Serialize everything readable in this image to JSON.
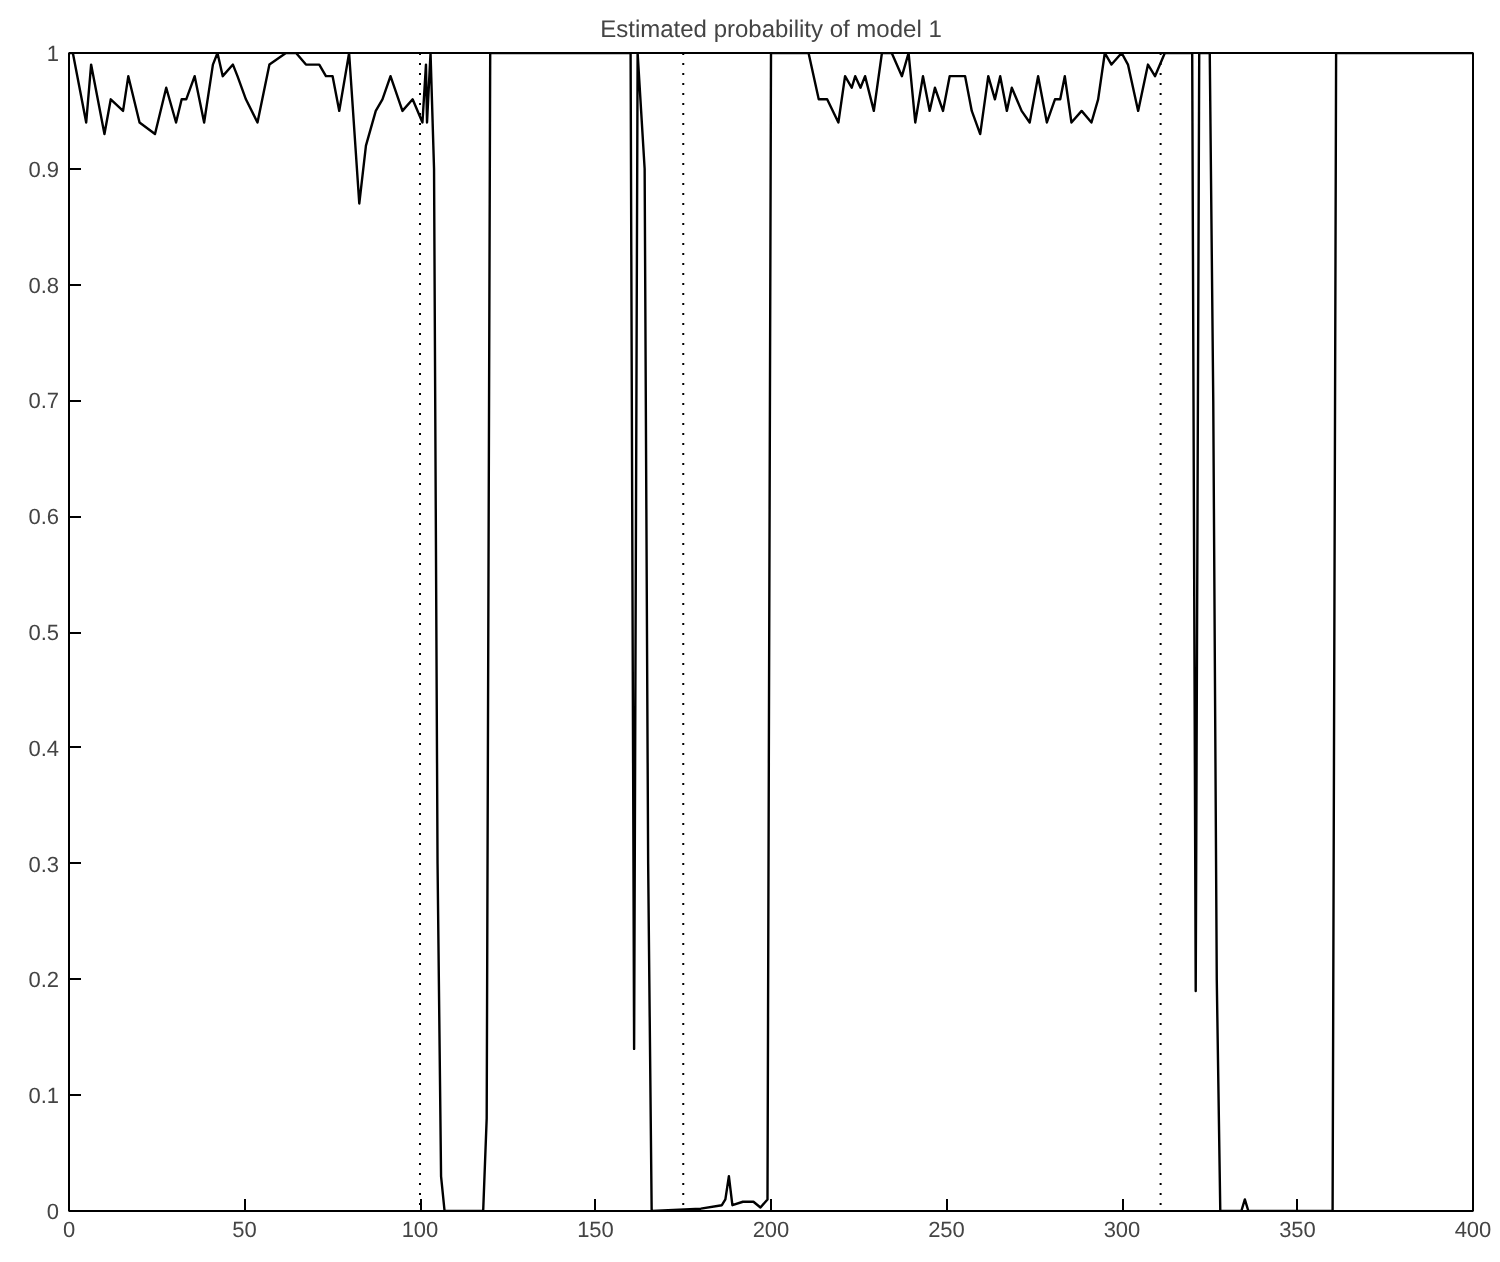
{
  "chart_data": {
    "type": "line",
    "title": "Estimated probability of model 1",
    "x": [
      0,
      1.1,
      4.9,
      6.3,
      10.1,
      11.9,
      15.4,
      16.9,
      20.1,
      24.5,
      27.7,
      30.5,
      32.1,
      33.4,
      35.8,
      38.5,
      41,
      42.3,
      43.8,
      46.7,
      48,
      50.4,
      53.7,
      57.1,
      61.8,
      64.7,
      67.5,
      71.3,
      73.2,
      75.1,
      77,
      79.8,
      82.7,
      84.6,
      87.4,
      89.3,
      91.6,
      95,
      97.9,
      100.7,
      101.7,
      102,
      103,
      104,
      105,
      106,
      107,
      118,
      119,
      120,
      160,
      161,
      162,
      163,
      164,
      165,
      166,
      180,
      186,
      187,
      188,
      189,
      192,
      195,
      197,
      199,
      200,
      205,
      208,
      210.7,
      213.6,
      216,
      219.2,
      221.1,
      223,
      224,
      225.5,
      226.8,
      229.3,
      231.6,
      234.4,
      237.3,
      239.2,
      241.1,
      243.3,
      245.2,
      246.7,
      249,
      250.9,
      253.4,
      255.3,
      257.2,
      259.6,
      261.9,
      263.8,
      265.3,
      267.2,
      268.6,
      271.4,
      273.7,
      276.1,
      278.6,
      280.9,
      282.4,
      283.7,
      285.6,
      288.5,
      291.3,
      293.2,
      295.1,
      297,
      299.9,
      301.7,
      304.6,
      307.4,
      309.4,
      312.2,
      320,
      321,
      322,
      325,
      326,
      327,
      328,
      334,
      335,
      336,
      360,
      361,
      400
    ],
    "series": [
      {
        "color": "#000000",
        "values": [
          1,
          1,
          0.94,
          0.99,
          0.93,
          0.96,
          0.95,
          0.98,
          0.94,
          0.93,
          0.97,
          0.94,
          0.96,
          0.96,
          0.98,
          0.94,
          0.99,
          1,
          0.98,
          0.99,
          0.98,
          0.96,
          0.94,
          0.99,
          1,
          1,
          0.99,
          0.99,
          0.98,
          0.98,
          0.95,
          1,
          0.87,
          0.92,
          0.95,
          0.96,
          0.98,
          0.95,
          0.96,
          0.94,
          0.99,
          0.94,
          1,
          0.9,
          0.3,
          0.03,
          0,
          0,
          0.08,
          1,
          1,
          0.14,
          1,
          0.95,
          0.9,
          0.3,
          0,
          0.002,
          0.005,
          0.01,
          0.03,
          0.005,
          0.008,
          0.008,
          0.003,
          0.01,
          1,
          1,
          1,
          1,
          0.96,
          0.96,
          0.94,
          0.98,
          0.97,
          0.98,
          0.97,
          0.98,
          0.95,
          1,
          1,
          0.98,
          1,
          0.94,
          0.98,
          0.95,
          0.97,
          0.95,
          0.98,
          0.98,
          0.98,
          0.95,
          0.93,
          0.98,
          0.96,
          0.98,
          0.95,
          0.97,
          0.95,
          0.94,
          0.98,
          0.94,
          0.96,
          0.96,
          0.98,
          0.94,
          0.95,
          0.94,
          0.96,
          1,
          0.99,
          1,
          0.99,
          0.95,
          0.99,
          0.98,
          1,
          1,
          0.19,
          1,
          1,
          0.7,
          0.2,
          0,
          0,
          0.01,
          0,
          0,
          1,
          1
        ]
      }
    ],
    "xlim": [
      0,
      400
    ],
    "ylim": [
      0,
      1
    ],
    "xticks": [
      0,
      50,
      100,
      150,
      200,
      250,
      300,
      350,
      400
    ],
    "yticks": [
      0,
      0.1,
      0.2,
      0.3,
      0.4,
      0.5,
      0.6,
      0.7,
      0.8,
      0.9,
      1
    ],
    "ref_lines": [
      {
        "axis": "x",
        "value": 100,
        "color": "#000000",
        "line_style": "dotted"
      },
      {
        "axis": "x",
        "value": 175,
        "color": "#000000",
        "line_style": "dotted"
      },
      {
        "axis": "x",
        "value": 311,
        "color": "#000000",
        "line_style": "dotted"
      }
    ],
    "grid": false,
    "marker": "none",
    "line_style": "solid"
  }
}
